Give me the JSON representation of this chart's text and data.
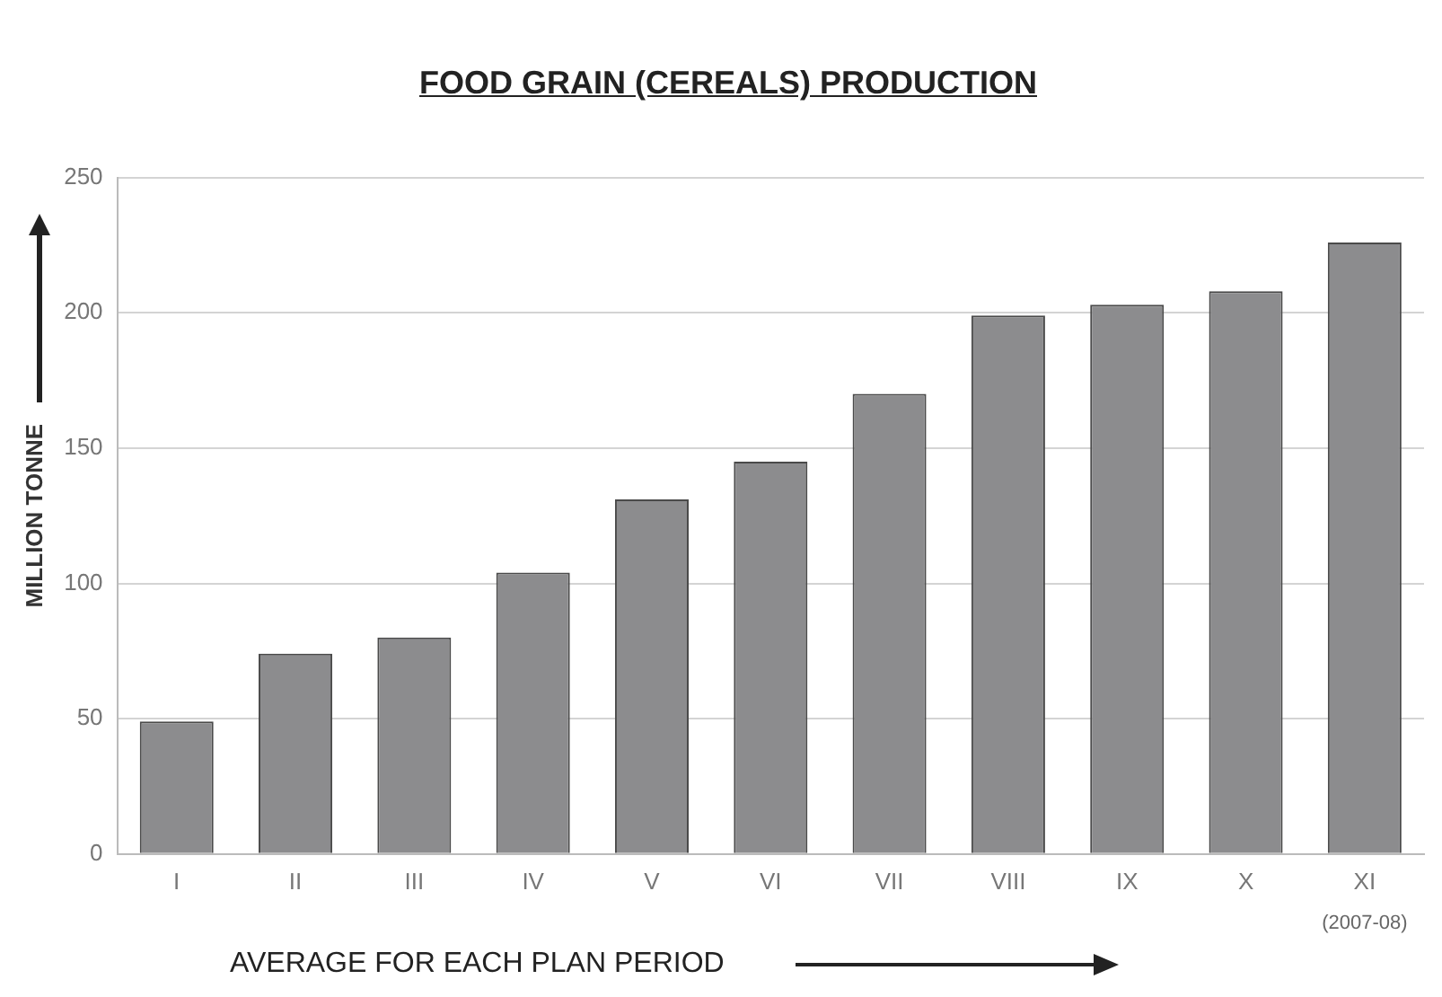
{
  "chart_data": {
    "type": "bar",
    "title": "FOOD GRAIN (CEREALS) PRODUCTION",
    "xlabel": "AVERAGE FOR EACH PLAN PERIOD",
    "ylabel": "MILLION TONNE",
    "categories": [
      "I",
      "II",
      "III",
      "IV",
      "V",
      "VI",
      "VII",
      "VIII",
      "IX",
      "X",
      "XI"
    ],
    "values": [
      49,
      74,
      80,
      104,
      131,
      145,
      170,
      199,
      203,
      208,
      226
    ],
    "color": "#8c8c8e",
    "ylim": [
      0,
      250
    ],
    "yticks": [
      0,
      50,
      100,
      150,
      200,
      250
    ],
    "grid": "y",
    "annotations": [
      "(2007-08)"
    ]
  }
}
